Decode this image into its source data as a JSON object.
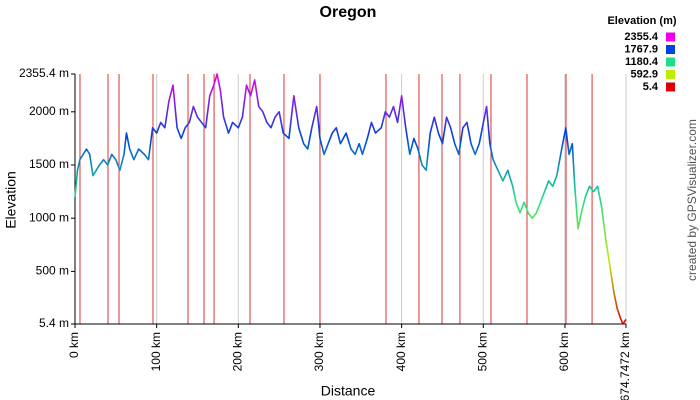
{
  "chart_data": {
    "type": "line",
    "title": "Oregon",
    "x_label": "Distance",
    "y_label": "Elevation",
    "credit": "created by GPSVisualizer.com",
    "legend_title": "Elevation (m)",
    "colorscale": [
      {
        "value": 2355.4,
        "color": "#ee00ee"
      },
      {
        "value": 1767.9,
        "color": "#0044dd"
      },
      {
        "value": 1180.4,
        "color": "#22dd88"
      },
      {
        "value": 592.9,
        "color": "#bbee00"
      },
      {
        "value": 5.4,
        "color": "#dd0000"
      }
    ],
    "xlim": [
      0,
      674.7472
    ],
    "ylim": [
      5.4,
      2355.4
    ],
    "xticks": [
      {
        "value": 0,
        "label": "0 km"
      },
      {
        "value": 100,
        "label": "100 km"
      },
      {
        "value": 200,
        "label": "200 km"
      },
      {
        "value": 300,
        "label": "300 km"
      },
      {
        "value": 400,
        "label": "400 km"
      },
      {
        "value": 500,
        "label": "500 km"
      },
      {
        "value": 600,
        "label": "600 km"
      },
      {
        "value": 674.7472,
        "label": "674.7472 km"
      }
    ],
    "yticks": [
      {
        "value": 5.4,
        "label": "5.4 m"
      },
      {
        "value": 500,
        "label": "500 m"
      },
      {
        "value": 1000,
        "label": "1000 m"
      },
      {
        "value": 1500,
        "label": "1500 m"
      },
      {
        "value": 2000,
        "label": "2000 m"
      },
      {
        "value": 2355.4,
        "label": "2355.4 m"
      }
    ],
    "grid": true,
    "markers": [
      6.1,
      40.4,
      53.9,
      95.5,
      138.4,
      158,
      170.3,
      214.3,
      255.9,
      300,
      380.8,
      421.2,
      449.4,
      471.4,
      509.4,
      553.5,
      601.3,
      633.2
    ],
    "marker_color": "#dd3333",
    "x": [
      0,
      3,
      6,
      10,
      14,
      18,
      22,
      26,
      30,
      35,
      40,
      45,
      50,
      55,
      60,
      63,
      67,
      72,
      78,
      85,
      90,
      95,
      100,
      105,
      110,
      115,
      120,
      125,
      130,
      135,
      140,
      145,
      150,
      155,
      160,
      165,
      170,
      174,
      178,
      182,
      188,
      193,
      200,
      205,
      210,
      215,
      220,
      225,
      230,
      235,
      240,
      245,
      250,
      255,
      262,
      268,
      274,
      280,
      285,
      290,
      296,
      300,
      305,
      310,
      315,
      320,
      325,
      332,
      338,
      343,
      348,
      352,
      358,
      363,
      368,
      375,
      380,
      385,
      390,
      395,
      400,
      405,
      410,
      415,
      420,
      425,
      430,
      435,
      440,
      445,
      450,
      455,
      460,
      465,
      470,
      475,
      480,
      485,
      490,
      495,
      504,
      508,
      512,
      518,
      524,
      530,
      536,
      540,
      545,
      550,
      555,
      560,
      565,
      570,
      575,
      580,
      585,
      590,
      596,
      601,
      605,
      609,
      612,
      616,
      620,
      625,
      630,
      635,
      640,
      645,
      650,
      655,
      660,
      664,
      668,
      671,
      674.7472
    ],
    "values": [
      1200,
      1450,
      1550,
      1600,
      1650,
      1600,
      1400,
      1450,
      1500,
      1550,
      1500,
      1600,
      1550,
      1450,
      1600,
      1800,
      1650,
      1550,
      1650,
      1600,
      1550,
      1850,
      1800,
      1900,
      1850,
      2100,
      2250,
      1850,
      1750,
      1850,
      1900,
      2050,
      1950,
      1900,
      1850,
      2150,
      2250,
      2355.4,
      2200,
      1950,
      1800,
      1900,
      1850,
      1950,
      2250,
      2150,
      2300,
      2050,
      2000,
      1900,
      1850,
      1950,
      2000,
      1800,
      1750,
      2150,
      1850,
      1700,
      1650,
      1850,
      2050,
      1750,
      1600,
      1700,
      1800,
      1850,
      1700,
      1800,
      1650,
      1600,
      1700,
      1600,
      1750,
      1900,
      1800,
      1850,
      2000,
      1950,
      2050,
      1900,
      2150,
      1850,
      1600,
      1750,
      1650,
      1500,
      1450,
      1800,
      1950,
      1800,
      1700,
      1950,
      1850,
      1700,
      1600,
      1850,
      1900,
      1700,
      1600,
      1700,
      2050,
      1700,
      1550,
      1450,
      1350,
      1450,
      1300,
      1150,
      1050,
      1150,
      1050,
      1000,
      1050,
      1150,
      1250,
      1350,
      1300,
      1400,
      1650,
      1850,
      1600,
      1700,
      1300,
      900,
      1050,
      1200,
      1300,
      1250,
      1300,
      1100,
      800,
      550,
      300,
      150,
      60,
      5.4,
      50
    ]
  }
}
